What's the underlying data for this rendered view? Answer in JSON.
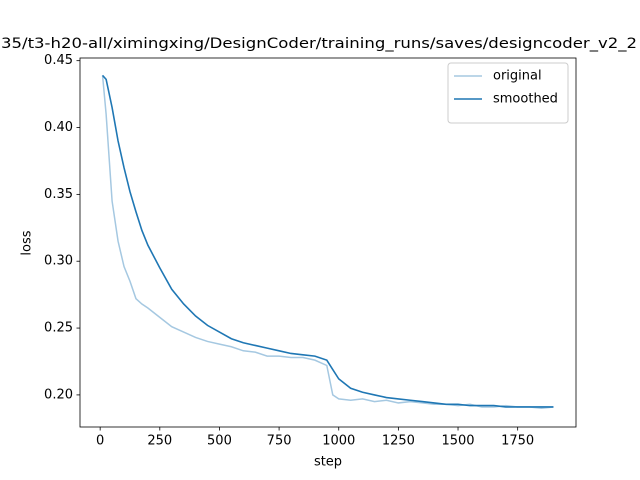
{
  "chart_data": {
    "type": "line",
    "title": "35/t3-h20-all/ximingxing/DesignCoder/training_runs/saves/designcoder_v2_2",
    "x_label": "step",
    "y_label": "loss",
    "x": [
      10,
      25,
      50,
      75,
      100,
      125,
      150,
      175,
      200,
      250,
      300,
      350,
      400,
      450,
      500,
      550,
      600,
      650,
      700,
      750,
      800,
      850,
      900,
      950,
      975,
      1000,
      1050,
      1100,
      1150,
      1200,
      1250,
      1300,
      1350,
      1400,
      1450,
      1500,
      1550,
      1600,
      1650,
      1700,
      1750,
      1800,
      1850,
      1900
    ],
    "series": [
      {
        "name": "original",
        "color": "#a5c8e1",
        "values": [
          0.439,
          0.41,
          0.345,
          0.315,
          0.296,
          0.285,
          0.272,
          0.268,
          0.265,
          0.258,
          0.251,
          0.247,
          0.243,
          0.24,
          0.238,
          0.236,
          0.233,
          0.232,
          0.229,
          0.229,
          0.228,
          0.228,
          0.226,
          0.222,
          0.2,
          0.197,
          0.196,
          0.197,
          0.195,
          0.196,
          0.194,
          0.195,
          0.194,
          0.193,
          0.193,
          0.192,
          0.193,
          0.191,
          0.191,
          0.192,
          0.191,
          0.191,
          0.19,
          0.191
        ]
      },
      {
        "name": "smoothed",
        "color": "#1f77b4",
        "values": [
          0.439,
          0.436,
          0.415,
          0.39,
          0.37,
          0.352,
          0.337,
          0.323,
          0.312,
          0.295,
          0.279,
          0.268,
          0.259,
          0.252,
          0.247,
          0.242,
          0.239,
          0.237,
          0.235,
          0.233,
          0.231,
          0.23,
          0.229,
          0.226,
          0.219,
          0.212,
          0.205,
          0.202,
          0.2,
          0.198,
          0.197,
          0.196,
          0.195,
          0.194,
          0.193,
          0.193,
          0.192,
          0.192,
          0.192,
          0.191,
          0.191,
          0.191,
          0.191,
          0.191
        ]
      }
    ],
    "xlim": [
      -84.5,
      1994.5
    ],
    "ylim": [
      0.176,
      0.452
    ],
    "xticks": [
      0,
      250,
      500,
      750,
      1000,
      1250,
      1500,
      1750
    ],
    "yticks": [
      {
        "value": 0.2,
        "label": "0.20"
      },
      0.25,
      {
        "value": 0.3,
        "label": "0.30"
      },
      0.35,
      {
        "value": 0.4,
        "label": "0.40"
      },
      0.45
    ],
    "legend": "upper right",
    "grid": false
  }
}
